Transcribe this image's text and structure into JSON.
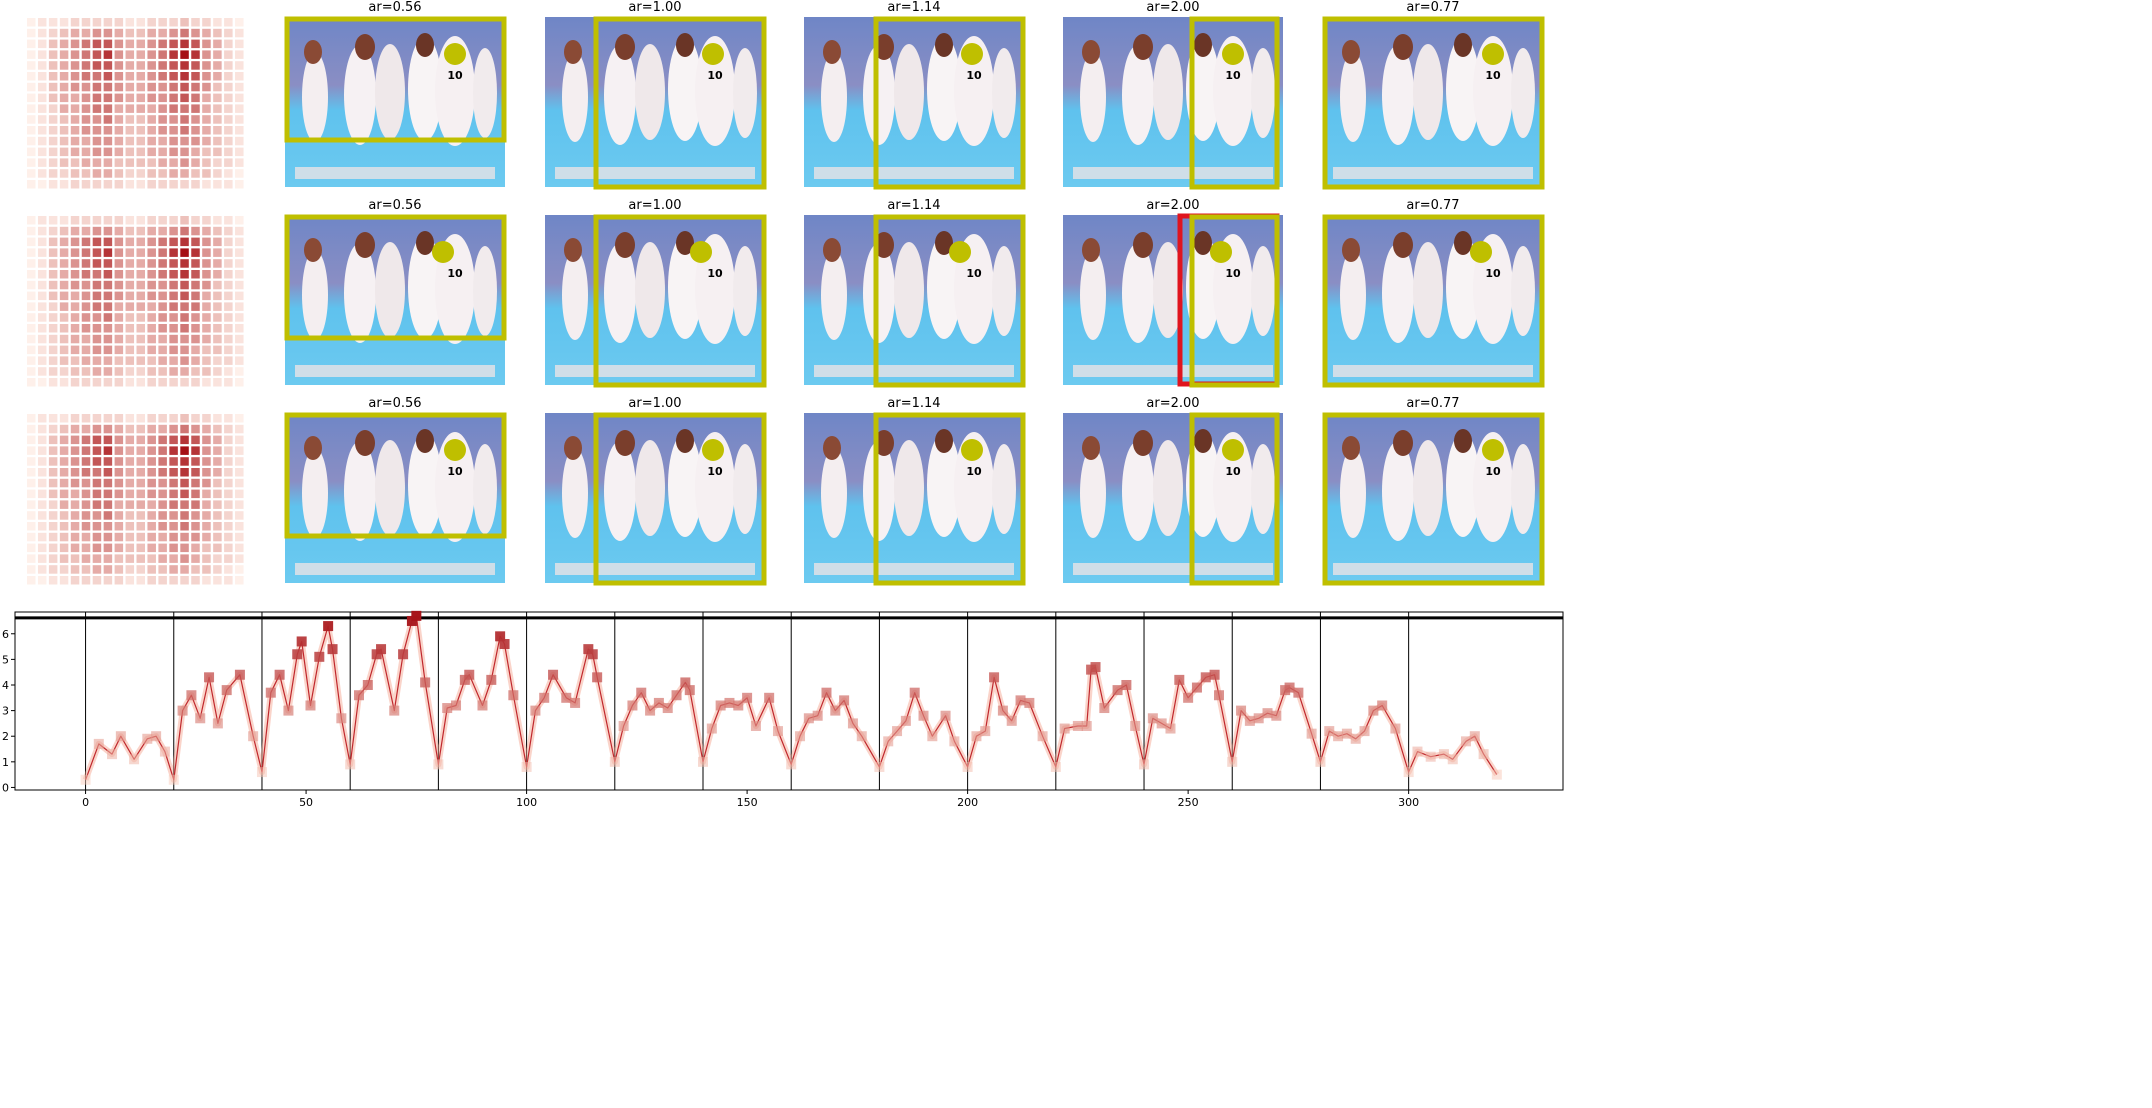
{
  "panels": {
    "rows": [
      {
        "titles": [
          "ar=0.56",
          "ar=1.00",
          "ar=1.14",
          "ar=2.00",
          "ar=0.77"
        ]
      },
      {
        "titles": [
          "ar=0.56",
          "ar=1.00",
          "ar=1.14",
          "ar=2.00",
          "ar=0.77"
        ]
      },
      {
        "titles": [
          "ar=0.56",
          "ar=1.00",
          "ar=1.14",
          "ar=2.00",
          "ar=0.77"
        ]
      }
    ]
  },
  "heatmap": {
    "values": [
      [
        0,
        1,
        1,
        1,
        2,
        2,
        2,
        2,
        2,
        1,
        1,
        2,
        2,
        2,
        3,
        2,
        2,
        1,
        1,
        0
      ],
      [
        0,
        1,
        2,
        3,
        4,
        4,
        5,
        5,
        4,
        3,
        3,
        4,
        4,
        5,
        6,
        5,
        4,
        3,
        2,
        1
      ],
      [
        0,
        1,
        3,
        4,
        5,
        6,
        7,
        7,
        5,
        4,
        4,
        5,
        6,
        7,
        8,
        7,
        5,
        4,
        2,
        1
      ],
      [
        0,
        1,
        3,
        4,
        5,
        6,
        7,
        8,
        5,
        4,
        4,
        5,
        6,
        8,
        9,
        8,
        5,
        4,
        2,
        1
      ],
      [
        0,
        1,
        3,
        4,
        5,
        6,
        7,
        7,
        5,
        4,
        4,
        5,
        6,
        7,
        8,
        7,
        5,
        4,
        2,
        1
      ],
      [
        0,
        1,
        3,
        4,
        5,
        6,
        6,
        7,
        5,
        4,
        4,
        5,
        6,
        7,
        8,
        7,
        5,
        4,
        2,
        1
      ],
      [
        0,
        1,
        3,
        4,
        5,
        5,
        6,
        6,
        5,
        4,
        4,
        5,
        5,
        6,
        7,
        6,
        5,
        3,
        2,
        1
      ],
      [
        0,
        1,
        3,
        4,
        4,
        5,
        6,
        6,
        5,
        4,
        4,
        5,
        5,
        6,
        7,
        6,
        4,
        3,
        2,
        1
      ],
      [
        0,
        1,
        2,
        4,
        4,
        5,
        6,
        6,
        4,
        4,
        4,
        4,
        5,
        6,
        6,
        6,
        4,
        3,
        2,
        1
      ],
      [
        0,
        1,
        2,
        3,
        4,
        5,
        5,
        6,
        4,
        3,
        3,
        4,
        5,
        5,
        6,
        5,
        4,
        3,
        2,
        1
      ],
      [
        0,
        1,
        2,
        3,
        4,
        5,
        5,
        5,
        4,
        3,
        3,
        4,
        5,
        5,
        6,
        5,
        4,
        3,
        2,
        1
      ],
      [
        0,
        1,
        2,
        3,
        4,
        4,
        5,
        5,
        4,
        3,
        3,
        4,
        4,
        5,
        5,
        5,
        4,
        3,
        2,
        1
      ],
      [
        0,
        1,
        2,
        3,
        4,
        4,
        5,
        5,
        4,
        3,
        3,
        4,
        4,
        5,
        5,
        4,
        3,
        3,
        2,
        1
      ],
      [
        0,
        1,
        2,
        3,
        3,
        4,
        4,
        4,
        3,
        3,
        3,
        3,
        4,
        4,
        5,
        4,
        3,
        2,
        2,
        1
      ],
      [
        0,
        1,
        2,
        2,
        3,
        3,
        4,
        4,
        3,
        2,
        2,
        3,
        3,
        4,
        4,
        3,
        3,
        2,
        1,
        0
      ],
      [
        0,
        0,
        1,
        1,
        2,
        2,
        2,
        2,
        2,
        1,
        1,
        2,
        2,
        2,
        2,
        2,
        1,
        1,
        1,
        0
      ]
    ]
  },
  "chart_data": {
    "type": "line",
    "x": [
      0,
      3,
      6,
      8,
      11,
      14,
      16,
      18,
      20,
      22,
      24,
      26,
      28,
      30,
      32,
      35,
      38,
      40,
      42,
      44,
      46,
      48,
      49,
      51,
      53,
      55,
      56,
      58,
      60,
      62,
      64,
      66,
      67,
      70,
      72,
      74,
      75,
      77,
      80,
      82,
      84,
      86,
      87,
      90,
      92,
      94,
      95,
      97,
      100,
      102,
      104,
      106,
      109,
      111,
      114,
      115,
      116,
      120,
      122,
      124,
      126,
      128,
      130,
      132,
      134,
      136,
      137,
      140,
      142,
      144,
      146,
      148,
      150,
      152,
      155,
      157,
      160,
      162,
      164,
      166,
      168,
      170,
      172,
      174,
      176,
      180,
      182,
      184,
      186,
      188,
      190,
      192,
      195,
      197,
      200,
      202,
      204,
      206,
      208,
      210,
      212,
      214,
      217,
      220,
      222,
      225,
      227,
      228,
      229,
      231,
      234,
      236,
      238,
      240,
      242,
      244,
      246,
      248,
      250,
      252,
      254,
      256,
      257,
      260,
      262,
      264,
      266,
      268,
      270,
      272,
      273,
      275,
      278,
      280,
      282,
      284,
      286,
      288,
      290,
      292,
      294,
      297,
      300,
      302,
      305,
      308,
      310,
      313,
      315,
      317,
      320
    ],
    "values": [
      0.3,
      1.7,
      1.3,
      2.0,
      1.1,
      1.9,
      2.0,
      1.4,
      0.3,
      3.0,
      3.6,
      2.7,
      4.3,
      2.5,
      3.8,
      4.4,
      2.0,
      0.6,
      3.7,
      4.4,
      3.0,
      5.2,
      5.7,
      3.2,
      5.1,
      6.3,
      5.4,
      2.7,
      0.9,
      3.6,
      4.0,
      5.2,
      5.4,
      3.0,
      5.2,
      6.5,
      6.7,
      4.1,
      0.9,
      3.1,
      3.2,
      4.2,
      4.4,
      3.2,
      4.2,
      5.9,
      5.6,
      3.6,
      0.8,
      3.0,
      3.5,
      4.4,
      3.5,
      3.3,
      5.4,
      5.2,
      4.3,
      1.0,
      2.4,
      3.2,
      3.7,
      3.0,
      3.3,
      3.1,
      3.6,
      4.1,
      3.8,
      1.0,
      2.3,
      3.2,
      3.3,
      3.2,
      3.5,
      2.4,
      3.5,
      2.2,
      0.9,
      2.0,
      2.7,
      2.8,
      3.7,
      3.0,
      3.4,
      2.5,
      2.0,
      0.8,
      1.8,
      2.2,
      2.6,
      3.7,
      2.8,
      2.0,
      2.8,
      1.8,
      0.8,
      2.0,
      2.2,
      4.3,
      3.0,
      2.6,
      3.4,
      3.3,
      2.0,
      0.8,
      2.3,
      2.4,
      2.4,
      4.6,
      4.7,
      3.1,
      3.8,
      4.0,
      2.4,
      0.9,
      2.7,
      2.5,
      2.3,
      4.2,
      3.5,
      3.9,
      4.3,
      4.4,
      3.6,
      1.0,
      3.0,
      2.6,
      2.7,
      2.9,
      2.8,
      3.8,
      3.9,
      3.7,
      2.1,
      1.0,
      2.2,
      2.0,
      2.1,
      1.9,
      2.2,
      3.0,
      3.2,
      2.3,
      0.6,
      1.4,
      1.2,
      1.3,
      1.1,
      1.8,
      2.0,
      1.3,
      0.5
    ],
    "color": "#c0282d",
    "hline": 6.62,
    "vlines": [
      0,
      20,
      40,
      60,
      80,
      100,
      120,
      140,
      160,
      180,
      200,
      220,
      240,
      260,
      280,
      300
    ],
    "xlim": [
      -16,
      335
    ],
    "ylim": [
      -0.1,
      6.85
    ],
    "xticks": [
      0,
      50,
      100,
      150,
      200,
      250,
      300
    ],
    "yticks": [
      0,
      1,
      2,
      3,
      4,
      5,
      6
    ]
  }
}
